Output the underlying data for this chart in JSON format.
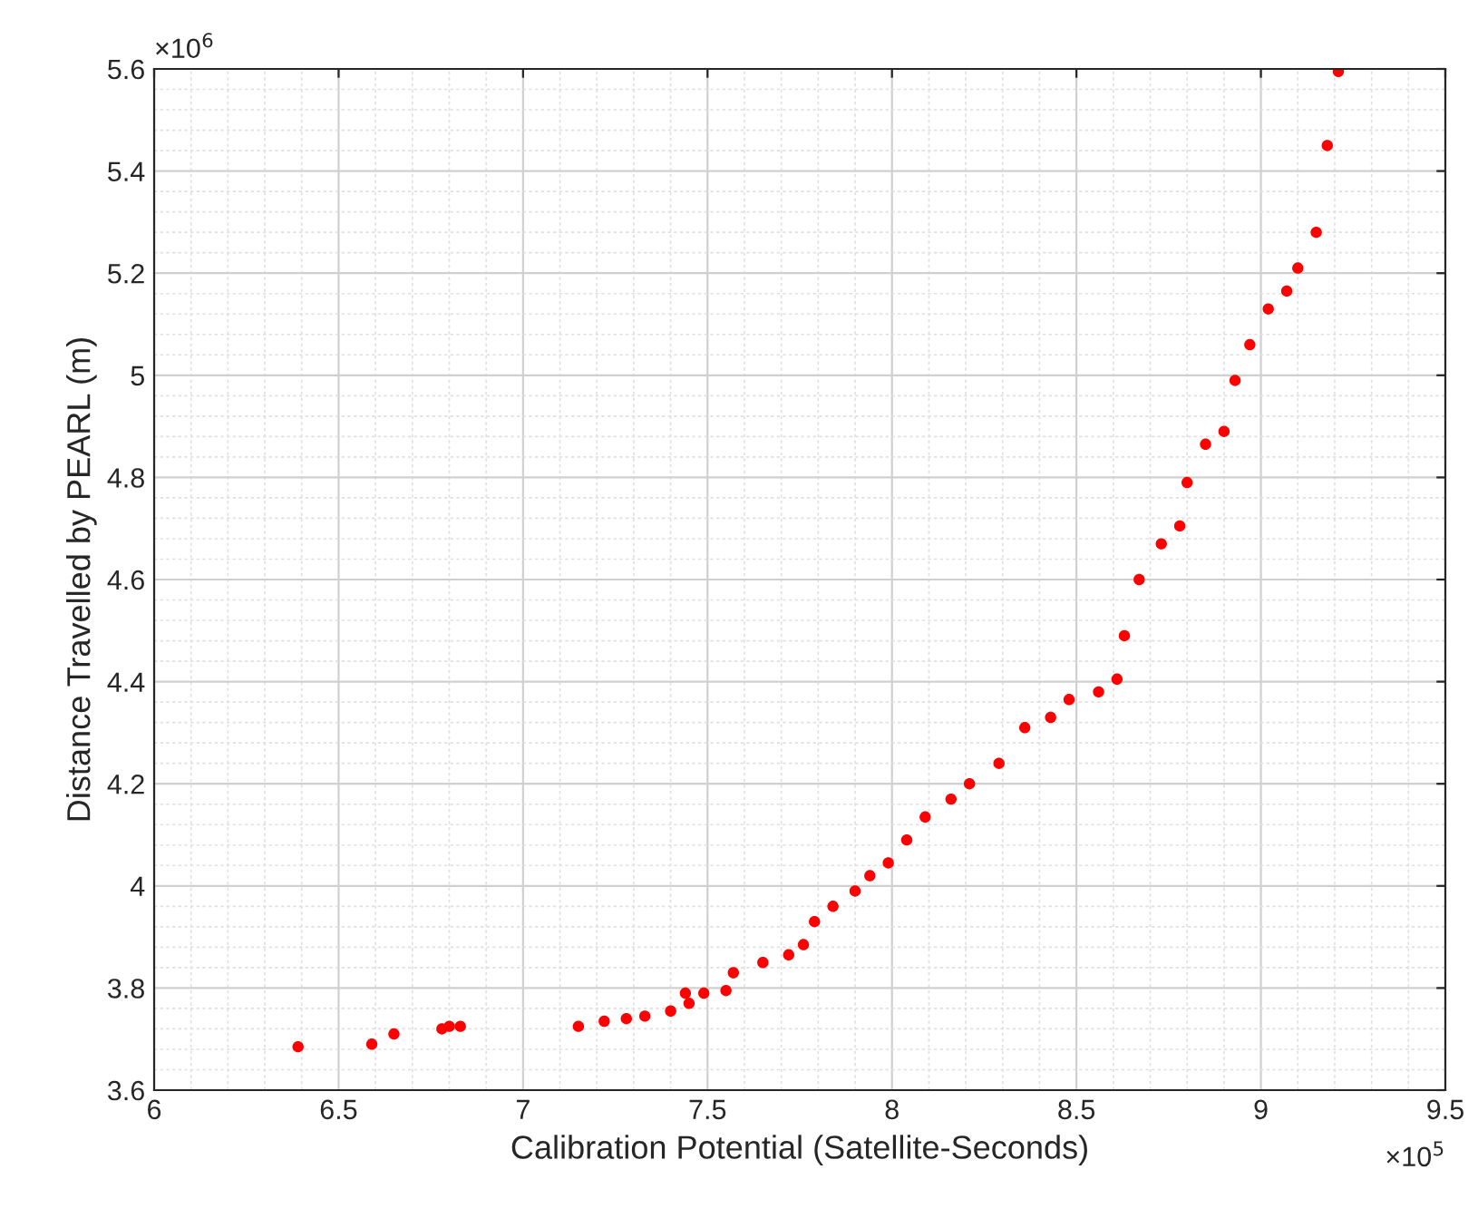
{
  "chart_data": {
    "type": "scatter",
    "xlabel": "Calibration Potential (Satellite-Seconds)",
    "ylabel": "Distance Travelled by PEARL (m)",
    "annotations": [
      "×10$^{6}$",
      "×10$^{5}$"
    ],
    "x": [
      6.39,
      6.59,
      6.65,
      6.78,
      6.8,
      6.83,
      7.15,
      7.22,
      7.28,
      7.33,
      7.4,
      7.45,
      7.44,
      7.49,
      7.55,
      7.57,
      7.65,
      7.72,
      7.76,
      7.79,
      7.84,
      7.9,
      7.94,
      7.99,
      8.04,
      8.09,
      8.16,
      8.21,
      8.29,
      8.36,
      8.43,
      8.48,
      8.56,
      8.61,
      8.63,
      8.67,
      8.73,
      8.78,
      8.8,
      8.85,
      8.9,
      8.93,
      8.97,
      9.02,
      9.07,
      9.1,
      9.15,
      9.18,
      9.21
    ],
    "series": [
      {
        "color": "#ff0000",
        "values": [
          3.685,
          3.69,
          3.71,
          3.72,
          3.725,
          3.725,
          3.725,
          3.735,
          3.74,
          3.745,
          3.755,
          3.77,
          3.79,
          3.79,
          3.795,
          3.83,
          3.85,
          3.865,
          3.885,
          3.93,
          3.96,
          3.99,
          4.02,
          4.045,
          4.09,
          4.135,
          4.17,
          4.2,
          4.24,
          4.31,
          4.33,
          4.365,
          4.38,
          4.405,
          4.49,
          4.6,
          4.67,
          4.705,
          4.79,
          4.865,
          4.89,
          4.99,
          5.06,
          5.13,
          5.165,
          5.21,
          5.28,
          5.45,
          5.595
        ]
      }
    ],
    "marker": "circle",
    "xlim": [
      6,
      9.5
    ],
    "xticks": [
      6,
      6.5,
      7,
      7.5,
      8,
      8.5,
      9,
      9.5
    ],
    "ylim": [
      3.6,
      5.6
    ],
    "yticks": [
      3.6,
      3.8,
      4,
      4.2,
      4.4,
      4.6,
      4.8,
      5,
      5.2,
      5.4,
      5.6
    ],
    "grid": true
  }
}
